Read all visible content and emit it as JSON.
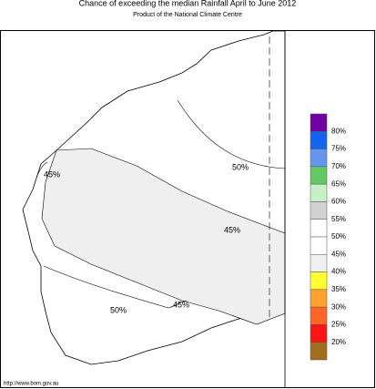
{
  "header": {
    "title": "Chance of exceeding the median Rainfall April to June 2012",
    "subtitle": "Product of the National Climate Centre"
  },
  "contour_labels": [
    "50%",
    "45%",
    "45%",
    "45%",
    "50%"
  ],
  "legend": {
    "colors": [
      "#7000a0",
      "#1464f0",
      "#6496f0",
      "#64c864",
      "#c8f0c8",
      "#d2d2d2",
      "#ffffff",
      "#ffffff",
      "#f0f0f0",
      "#ffff32",
      "#ffa032",
      "#ff6428",
      "#ff1414",
      "#a06e1e"
    ],
    "labels": [
      "80%",
      "75%",
      "70%",
      "65%",
      "60%",
      "55%",
      "50%",
      "45%",
      "40%",
      "35%",
      "30%",
      "25%",
      "20%"
    ]
  },
  "footer": "http://www.bom.gov.au"
}
